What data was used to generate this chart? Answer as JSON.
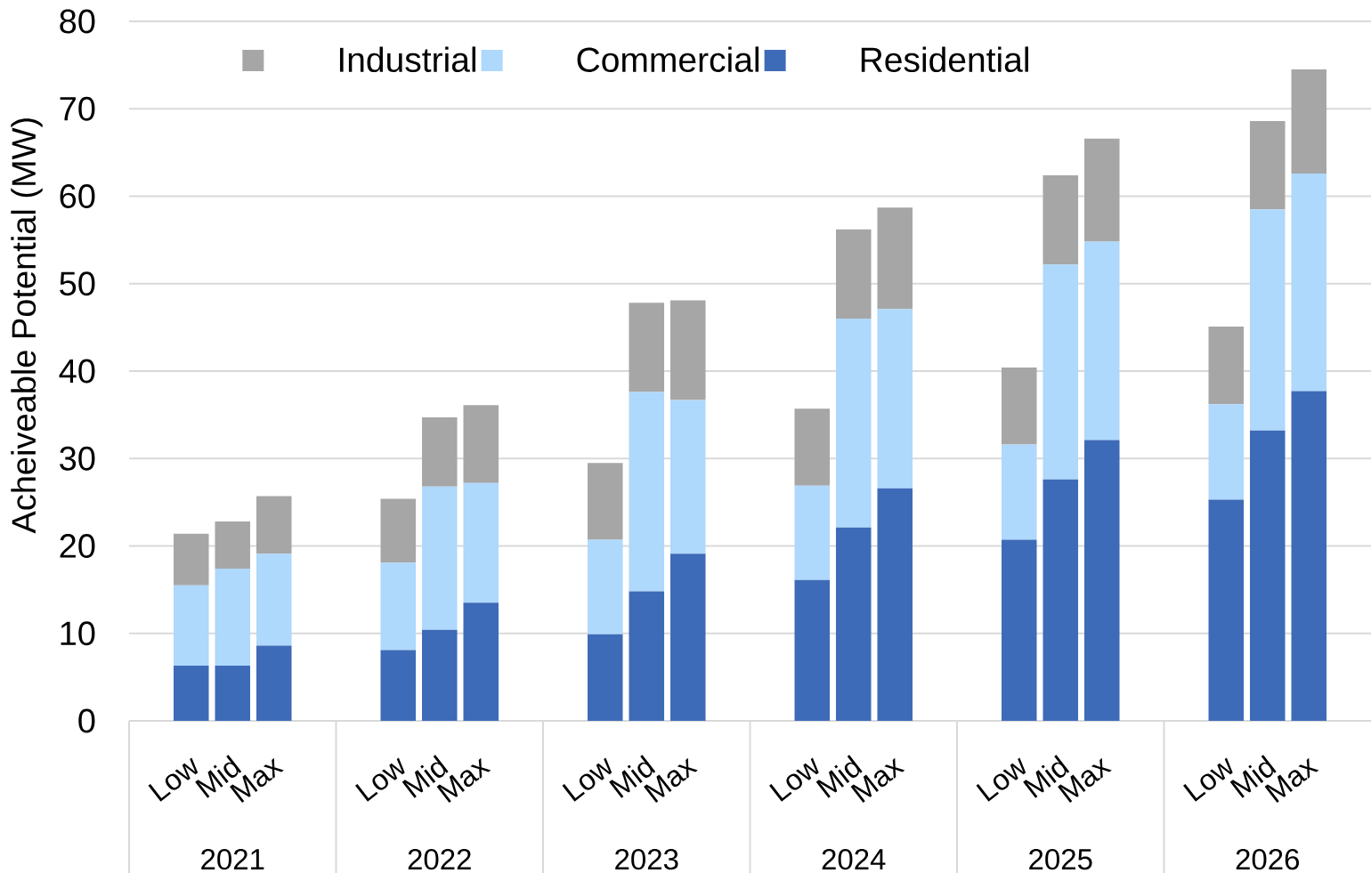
{
  "chart_data": {
    "type": "bar",
    "stacked": true,
    "categories": [
      "Low",
      "Mid",
      "Max",
      null,
      null,
      "Low",
      "Mid",
      "Max",
      null,
      null,
      "Low",
      "Mid",
      "Max",
      null,
      null,
      "Low",
      "Mid",
      "Max",
      null,
      null,
      "Low",
      "Mid",
      "Max",
      null,
      null,
      "Low",
      "Mid",
      "Max"
    ],
    "series": [
      {
        "name": "Residential",
        "color": "#3e6bb8",
        "values": [
          6.3,
          6.3,
          8.6,
          null,
          null,
          8.1,
          10.4,
          13.5,
          null,
          null,
          9.9,
          14.8,
          19.1,
          null,
          null,
          16.1,
          22.1,
          26.6,
          null,
          null,
          20.7,
          27.6,
          32.1,
          null,
          null,
          25.3,
          33.2,
          37.7
        ]
      },
      {
        "name": "Commercial",
        "color": "#aed8fc",
        "values": [
          9.2,
          11.1,
          10.5,
          null,
          null,
          10.0,
          16.4,
          13.7,
          null,
          null,
          10.8,
          22.8,
          17.6,
          null,
          null,
          10.8,
          23.9,
          20.5,
          null,
          null,
          10.9,
          24.6,
          22.7,
          null,
          null,
          10.9,
          25.3,
          24.9
        ]
      },
      {
        "name": "Industrial",
        "color": "#a6a6a6",
        "values": [
          5.9,
          5.4,
          6.6,
          null,
          null,
          7.3,
          7.9,
          8.9,
          null,
          null,
          8.8,
          10.2,
          11.4,
          null,
          null,
          8.8,
          10.2,
          11.6,
          null,
          null,
          8.8,
          10.2,
          11.8,
          null,
          null,
          8.9,
          10.1,
          11.9
        ]
      }
    ],
    "ylabel": "Acheiveable Potential (MW)",
    "ylim": [
      0,
      80
    ],
    "yticks": [
      0,
      10,
      20,
      30,
      40,
      50,
      60,
      70,
      80
    ],
    "grid": "y",
    "legend": "top",
    "annotations": [
      "2021",
      "2022",
      "2023",
      "2024",
      "2025",
      "2026"
    ]
  }
}
